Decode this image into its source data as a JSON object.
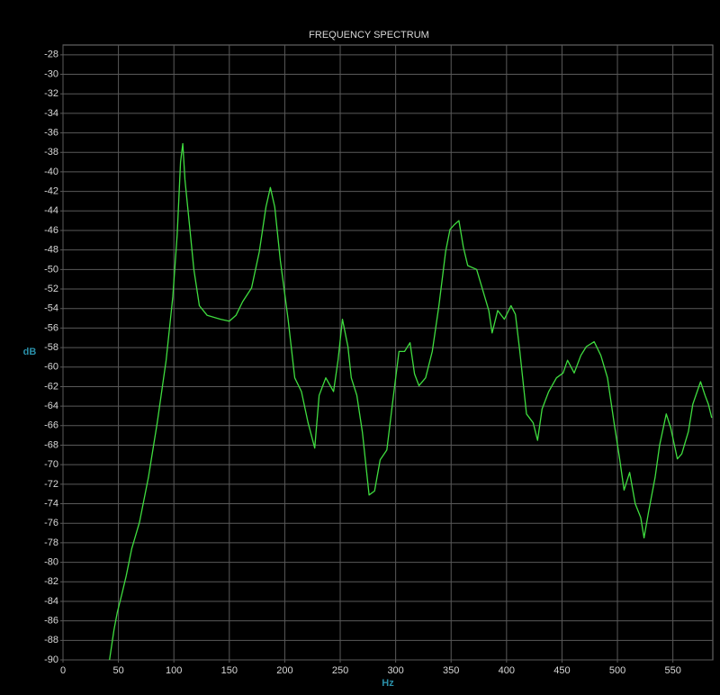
{
  "chart_data": {
    "type": "line",
    "title": "FREQUENCY SPECTRUM",
    "x_label": "Hz",
    "y_label": "dB",
    "x": [
      42,
      46,
      49,
      53,
      57,
      62,
      69,
      77,
      85,
      93,
      99,
      103,
      106,
      108,
      110,
      114,
      118,
      123,
      130,
      142,
      150,
      156,
      162,
      170,
      177,
      183,
      187,
      191,
      196,
      203,
      209,
      215,
      221,
      227,
      231,
      237,
      244,
      248,
      252,
      257,
      260,
      265,
      270,
      276,
      281,
      286,
      292,
      298,
      303,
      308,
      313,
      317,
      321,
      327,
      333,
      339,
      345,
      349,
      353,
      357,
      361,
      365,
      373,
      379,
      384,
      387,
      392,
      398,
      404,
      408,
      412,
      418,
      424,
      428,
      432,
      438,
      445,
      451,
      455,
      461,
      467,
      472,
      479,
      485,
      491,
      497,
      502,
      506,
      511,
      516,
      521,
      524,
      528,
      534,
      538,
      544,
      548,
      554,
      558,
      564,
      568,
      575,
      579,
      582,
      585
    ],
    "series": [
      {
        "color": "#3fdc3f",
        "values": [
          -90,
          -86.9,
          -85.1,
          -83.3,
          -81.4,
          -78.6,
          -75.9,
          -71.3,
          -65.7,
          -59.3,
          -52.8,
          -46.4,
          -39,
          -37.1,
          -40.8,
          -45.4,
          -50,
          -53.7,
          -54.7,
          -55.1,
          -55.3,
          -54.7,
          -53.3,
          -51.9,
          -48.2,
          -43.6,
          -41.6,
          -43.6,
          -49.1,
          -55.1,
          -61.1,
          -62.5,
          -65.7,
          -68.3,
          -62.9,
          -61.1,
          -62.5,
          -59.3,
          -55.1,
          -57.9,
          -61.1,
          -62.9,
          -66.7,
          -73.1,
          -72.7,
          -69.5,
          -68.5,
          -62.9,
          -58.4,
          -58.4,
          -57.5,
          -60.7,
          -61.9,
          -61.1,
          -58.4,
          -53.7,
          -48.2,
          -45.9,
          -45.4,
          -45,
          -47.7,
          -49.6,
          -50,
          -52.3,
          -54.2,
          -56.5,
          -54.2,
          -55.1,
          -53.7,
          -54.6,
          -58.4,
          -64.8,
          -65.7,
          -67.5,
          -64.3,
          -62.5,
          -61.1,
          -60.6,
          -59.3,
          -60.6,
          -58.8,
          -57.9,
          -57.4,
          -58.8,
          -61.1,
          -65.7,
          -69.4,
          -72.6,
          -70.8,
          -74,
          -75.4,
          -77.5,
          -74.9,
          -71.3,
          -68,
          -64.8,
          -66.2,
          -69.4,
          -68.9,
          -66.6,
          -63.8,
          -61.5,
          -62.9,
          -63.8,
          -65.2
        ]
      }
    ],
    "xlim": [
      0,
      586
    ],
    "ylim": [
      -90,
      -27
    ],
    "xticks": [
      0,
      50,
      100,
      150,
      200,
      250,
      300,
      350,
      400,
      450,
      500,
      550
    ],
    "yticks": [
      -28,
      -30,
      -32,
      -34,
      -36,
      -38,
      -40,
      -42,
      -44,
      -46,
      -48,
      -50,
      -52,
      -54,
      -56,
      -58,
      -60,
      -62,
      -64,
      -66,
      -68,
      -70,
      -72,
      -74,
      -76,
      -78,
      -80,
      -82,
      -84,
      -86,
      -88,
      -90
    ],
    "grid": true
  }
}
